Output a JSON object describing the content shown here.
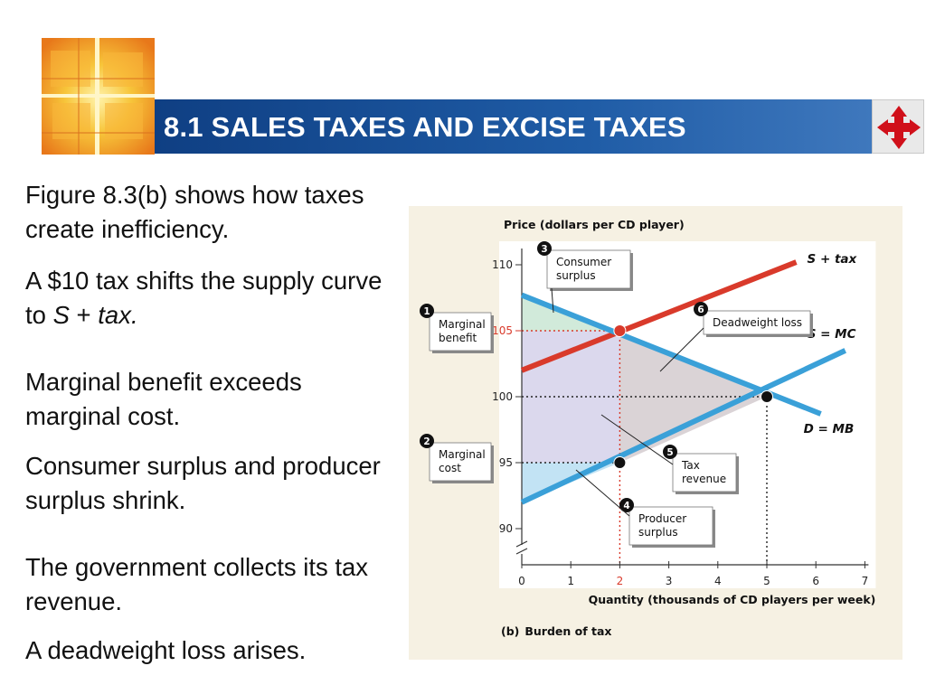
{
  "slide": {
    "title": "8.1 SALES TAXES AND EXCISE TAXES",
    "nav_icon": "four-arrows-cross-icon",
    "colors": {
      "title_bar": "#1c5097",
      "title_text": "#ffffff",
      "logo": "#f2a41e",
      "nav_arrows": "#d0101a"
    }
  },
  "paragraphs": {
    "p1": "Figure 8.3(b) shows how taxes create inefficiency.",
    "p2_pre": "A $10 tax shifts the supply curve to ",
    "p2_s": "S",
    "p2_plus": " + ",
    "p2_tax": "tax.",
    "p3": "Marginal benefit exceeds marginal cost.",
    "p4": "Consumer surplus and producer surplus shrink.",
    "p5": "The government collects its tax revenue.",
    "p6": "A deadweight loss arises."
  },
  "chart_data": {
    "type": "line",
    "caption_label": "(b)",
    "caption_text": "Burden of tax",
    "ylabel": "Price (dollars per CD player)",
    "xlabel": "Quantity (thousands of CD players per week)",
    "x_ticks": [
      "0",
      "1",
      "2",
      "3",
      "4",
      "5",
      "6",
      "7"
    ],
    "y_ticks": [
      "90",
      "95",
      "100",
      "105",
      "110"
    ],
    "xlim": [
      0,
      7
    ],
    "ylim": [
      90,
      110
    ],
    "axis_break": true,
    "series": [
      {
        "name": "S + tax",
        "x": [
          0,
          5.6
        ],
        "y": [
          102,
          110.2
        ],
        "color": "#d93a2b"
      },
      {
        "name": "S = MC",
        "x": [
          0,
          6.6
        ],
        "y": [
          92,
          103.5
        ],
        "color": "#3aa0d8"
      },
      {
        "name": "D = MB",
        "x": [
          0,
          6.1
        ],
        "y": [
          107.7,
          98.7
        ],
        "color": "#3aa0d8"
      }
    ],
    "points": [
      {
        "x": 2,
        "y": 105,
        "color": "#d93a2b"
      },
      {
        "x": 2,
        "y": 95,
        "color": "#111111"
      },
      {
        "x": 5,
        "y": 100,
        "color": "#111111"
      }
    ],
    "areas": [
      {
        "name": "Consumer surplus",
        "color": "#cfe9d8",
        "polygon": [
          [
            0,
            107.7
          ],
          [
            2,
            105
          ],
          [
            0,
            105
          ]
        ]
      },
      {
        "name": "Tax revenue",
        "color": "#d9d6ec",
        "polygon": [
          [
            0,
            105
          ],
          [
            2,
            105
          ],
          [
            2,
            95
          ],
          [
            0,
            95
          ]
        ]
      },
      {
        "name": "Producer surplus",
        "color": "#bfe1f3",
        "polygon": [
          [
            0,
            95
          ],
          [
            2,
            95
          ],
          [
            0,
            92
          ]
        ]
      },
      {
        "name": "Deadweight loss",
        "color": "#d8d1d4",
        "polygon": [
          [
            2,
            105
          ],
          [
            5,
            100
          ],
          [
            2,
            95
          ]
        ]
      }
    ],
    "highlighted_ticks": {
      "x": "2",
      "y": "105"
    },
    "annotations": [
      {
        "number": "1",
        "text": "Marginal benefit"
      },
      {
        "number": "2",
        "text": "Marginal cost"
      },
      {
        "number": "3",
        "text": "Consumer surplus"
      },
      {
        "number": "4",
        "text": "Producer surplus"
      },
      {
        "number": "5",
        "text": "Tax revenue"
      },
      {
        "number": "6",
        "text": "Deadweight loss"
      }
    ]
  }
}
